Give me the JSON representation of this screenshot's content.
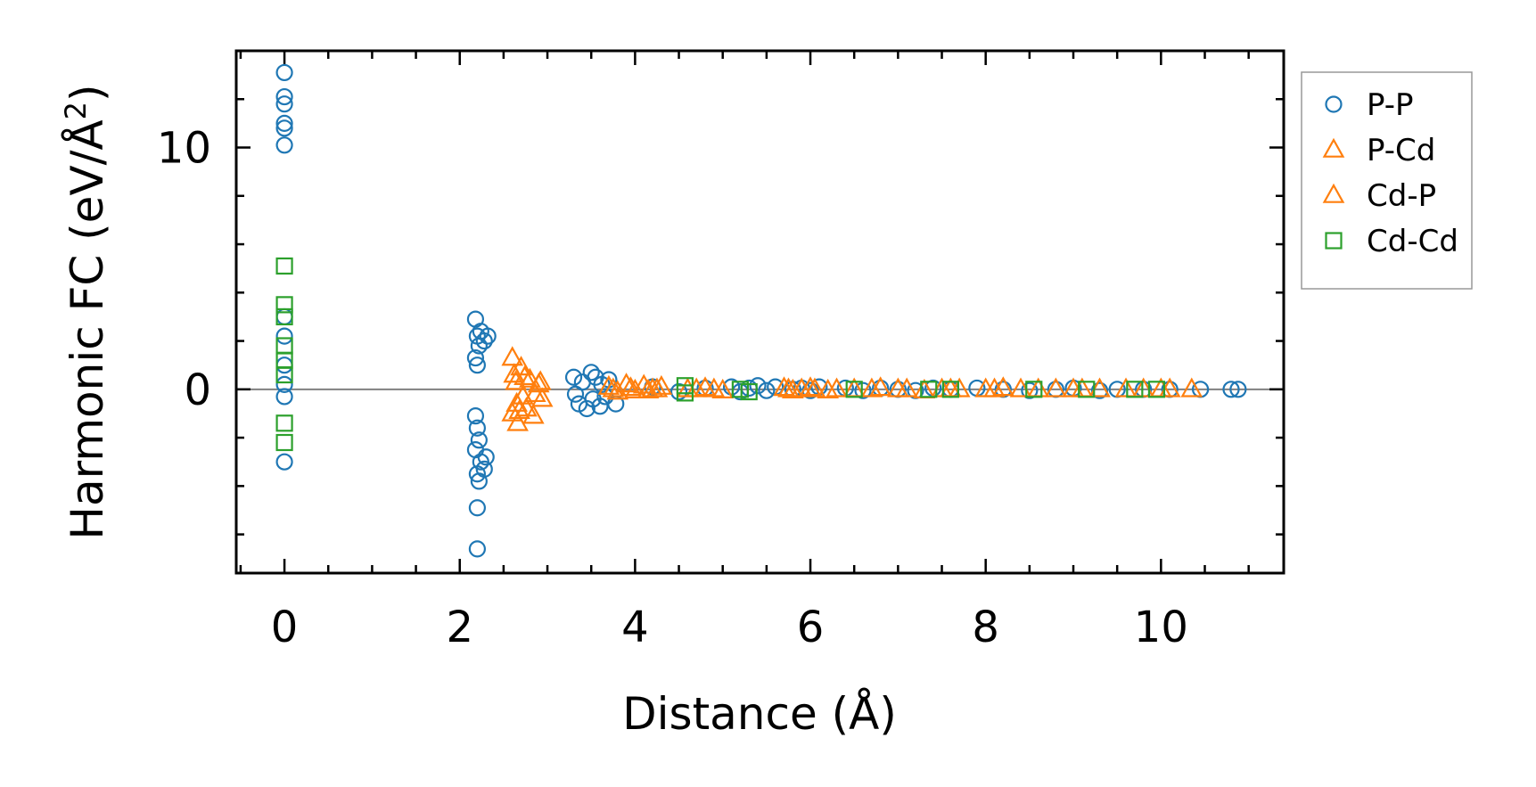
{
  "chart_data": {
    "type": "scatter",
    "title": "",
    "xlabel": "Distance (Å)",
    "ylabel_main": "Harmonic FC (eV/Å",
    "ylabel_sup": "2",
    "ylabel_close": ")",
    "xlim": [
      -0.55,
      11.4
    ],
    "ylim": [
      -7.6,
      14.0
    ],
    "x_major_ticks": [
      0,
      2,
      4,
      6,
      8,
      10
    ],
    "x_tick_labels": [
      "0",
      "2",
      "4",
      "6",
      "8",
      "10"
    ],
    "y_major_ticks": [
      0,
      10
    ],
    "y_tick_labels": [
      "0",
      "10"
    ],
    "x_minor_step": 0.5,
    "y_minor_step": 2,
    "zero_line": true,
    "grid": false,
    "legend_placement": "outside-right",
    "series": [
      {
        "name": "P-P",
        "marker": "circle",
        "color": "#1f77b4",
        "points": [
          [
            0,
            13.1
          ],
          [
            0,
            12.1
          ],
          [
            0,
            11.8
          ],
          [
            0,
            11.0
          ],
          [
            0,
            10.8
          ],
          [
            0,
            10.1
          ],
          [
            0,
            3.0
          ],
          [
            0,
            2.2
          ],
          [
            0,
            1.0
          ],
          [
            0,
            0.2
          ],
          [
            0,
            -0.3
          ],
          [
            0,
            -3.0
          ],
          [
            2.18,
            2.9
          ],
          [
            2.2,
            2.2
          ],
          [
            2.22,
            1.8
          ],
          [
            2.18,
            1.3
          ],
          [
            2.2,
            1.0
          ],
          [
            2.24,
            2.4
          ],
          [
            2.28,
            2.0
          ],
          [
            2.32,
            2.2
          ],
          [
            2.18,
            -1.1
          ],
          [
            2.2,
            -1.6
          ],
          [
            2.22,
            -2.1
          ],
          [
            2.18,
            -2.5
          ],
          [
            2.24,
            -3.0
          ],
          [
            2.2,
            -3.5
          ],
          [
            2.28,
            -3.3
          ],
          [
            2.3,
            -2.8
          ],
          [
            2.22,
            -3.8
          ],
          [
            2.2,
            -4.9
          ],
          [
            2.2,
            -6.6
          ],
          [
            3.3,
            0.5
          ],
          [
            3.32,
            -0.2
          ],
          [
            3.36,
            -0.6
          ],
          [
            3.4,
            0.3
          ],
          [
            3.45,
            -0.8
          ],
          [
            3.5,
            0.7
          ],
          [
            3.52,
            -0.4
          ],
          [
            3.55,
            0.5
          ],
          [
            3.6,
            -0.7
          ],
          [
            3.62,
            0.2
          ],
          [
            3.66,
            -0.3
          ],
          [
            3.7,
            0.4
          ],
          [
            3.78,
            -0.6
          ],
          [
            4.2,
            0.1
          ],
          [
            4.5,
            -0.1
          ],
          [
            4.8,
            0.05
          ],
          [
            5.1,
            0.1
          ],
          [
            5.2,
            -0.1
          ],
          [
            5.3,
            0.05
          ],
          [
            5.4,
            0.15
          ],
          [
            5.5,
            -0.05
          ],
          [
            5.6,
            0.1
          ],
          [
            5.8,
            0.0
          ],
          [
            5.9,
            0.05
          ],
          [
            6.0,
            -0.05
          ],
          [
            6.1,
            0.1
          ],
          [
            6.4,
            0.05
          ],
          [
            6.6,
            -0.05
          ],
          [
            6.8,
            0.05
          ],
          [
            7.0,
            0.0
          ],
          [
            7.2,
            -0.05
          ],
          [
            7.4,
            0.05
          ],
          [
            7.6,
            0.0
          ],
          [
            7.9,
            0.05
          ],
          [
            8.2,
            0.0
          ],
          [
            8.5,
            -0.05
          ],
          [
            8.8,
            0.0
          ],
          [
            9.0,
            0.05
          ],
          [
            9.3,
            -0.05
          ],
          [
            9.5,
            0.0
          ],
          [
            9.8,
            0.0
          ],
          [
            10.1,
            0.0
          ],
          [
            10.45,
            0.0
          ],
          [
            10.8,
            0.0
          ],
          [
            10.88,
            0.0
          ]
        ]
      },
      {
        "name": "P-Cd",
        "marker": "triangle",
        "color": "#ff7f0e",
        "points": [
          [
            2.6,
            1.3
          ],
          [
            2.62,
            0.6
          ],
          [
            2.65,
            -0.6
          ],
          [
            2.6,
            -1.0
          ],
          [
            2.66,
            -1.4
          ],
          [
            2.7,
            0.9
          ],
          [
            2.72,
            -0.3
          ],
          [
            2.76,
            -0.8
          ],
          [
            2.8,
            0.4
          ],
          [
            2.84,
            -1.1
          ],
          [
            2.9,
            0.2
          ],
          [
            2.94,
            -0.4
          ],
          [
            3.7,
            0.1
          ],
          [
            3.8,
            -0.1
          ],
          [
            3.9,
            0.2
          ],
          [
            4.0,
            -0.05
          ],
          [
            4.1,
            0.15
          ],
          [
            4.2,
            0.0
          ],
          [
            4.3,
            0.1
          ],
          [
            4.6,
            0.0
          ],
          [
            4.8,
            0.05
          ],
          [
            5.0,
            -0.05
          ],
          [
            5.7,
            0.05
          ],
          [
            5.8,
            -0.05
          ],
          [
            5.9,
            0.0
          ],
          [
            6.0,
            0.05
          ],
          [
            6.2,
            -0.05
          ],
          [
            6.5,
            0.0
          ],
          [
            6.8,
            0.05
          ],
          [
            7.0,
            0.0
          ],
          [
            7.3,
            -0.05
          ],
          [
            7.6,
            0.0
          ],
          [
            8.0,
            0.0
          ],
          [
            8.2,
            0.05
          ],
          [
            8.6,
            0.0
          ],
          [
            9.0,
            0.0
          ],
          [
            9.3,
            0.0
          ],
          [
            9.8,
            0.0
          ],
          [
            10.0,
            0.0
          ],
          [
            10.35,
            0.0
          ]
        ]
      },
      {
        "name": "Cd-P",
        "marker": "triangle",
        "color": "#ff7f0e",
        "points": [
          [
            2.64,
            0.3
          ],
          [
            2.68,
            -0.9
          ],
          [
            2.74,
            0.5
          ],
          [
            2.86,
            -0.2
          ],
          [
            2.92,
            0.3
          ],
          [
            3.75,
            0.0
          ],
          [
            3.95,
            0.05
          ],
          [
            4.15,
            -0.05
          ],
          [
            4.25,
            0.0
          ],
          [
            4.7,
            0.0
          ],
          [
            4.9,
            0.0
          ],
          [
            5.75,
            0.0
          ],
          [
            6.05,
            0.0
          ],
          [
            6.3,
            0.0
          ],
          [
            6.7,
            0.0
          ],
          [
            7.1,
            0.0
          ],
          [
            7.5,
            0.0
          ],
          [
            7.7,
            0.0
          ],
          [
            8.1,
            0.0
          ],
          [
            8.4,
            0.0
          ],
          [
            8.8,
            0.0
          ],
          [
            9.1,
            0.0
          ],
          [
            9.6,
            0.0
          ],
          [
            10.1,
            0.0
          ]
        ]
      },
      {
        "name": "Cd-Cd",
        "marker": "square",
        "color": "#2ca02c",
        "points": [
          [
            0,
            5.1
          ],
          [
            0,
            3.5
          ],
          [
            0,
            3.0
          ],
          [
            0,
            1.8
          ],
          [
            0,
            1.2
          ],
          [
            0,
            0.6
          ],
          [
            0,
            -1.4
          ],
          [
            0,
            -2.2
          ],
          [
            4.57,
            0.15
          ],
          [
            4.57,
            -0.15
          ],
          [
            5.2,
            0.0
          ],
          [
            5.3,
            -0.1
          ],
          [
            6.5,
            0.0
          ],
          [
            7.35,
            0.0
          ],
          [
            7.6,
            0.0
          ],
          [
            8.55,
            0.0
          ],
          [
            9.15,
            0.0
          ],
          [
            9.7,
            0.0
          ],
          [
            9.95,
            0.0
          ]
        ]
      }
    ]
  }
}
